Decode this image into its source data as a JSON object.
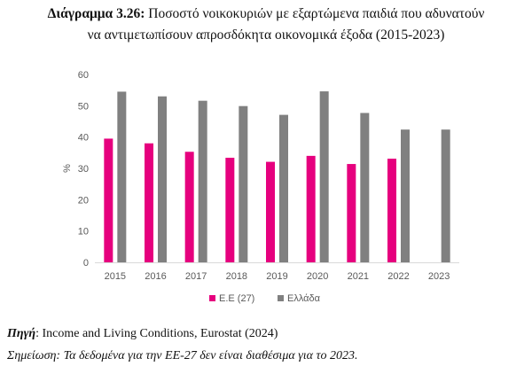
{
  "figure": {
    "title_prefix": "Διάγραμμα 3.26:",
    "title_line1_rest": "Ποσοστό νοικοκυριών με εξαρτώμενα παιδιά που αδυνατούν",
    "title_line2": "να αντιμετωπίσουν απροσδόκητα οικονομικά έξοδα (2015-2023)"
  },
  "footer": {
    "source_label": "Πηγή",
    "source_sep": ":",
    "source_text": " Income and Living Conditions, Eurostat (2024)",
    "note": "Σημείωση: Τα δεδομένα για την ΕΕ-27 δεν είναι διαθέσιμα για το 2023."
  },
  "chart_data": {
    "type": "bar",
    "categories": [
      "2015",
      "2016",
      "2017",
      "2018",
      "2019",
      "2020",
      "2021",
      "2022",
      "2023"
    ],
    "series": [
      {
        "name": "Ε.Ε (27)",
        "color": "#e6007e",
        "values": [
          39.5,
          38.0,
          35.3,
          33.4,
          32.1,
          34.0,
          31.4,
          33.1,
          null
        ]
      },
      {
        "name": "Ελλάδα",
        "color": "#808080",
        "values": [
          54.5,
          53.0,
          51.6,
          49.9,
          47.1,
          54.6,
          47.7,
          42.4,
          42.4
        ]
      }
    ],
    "ylabel": "%",
    "ylim": [
      0,
      60
    ],
    "yticks": [
      0,
      10,
      20,
      30,
      40,
      50,
      60
    ],
    "grid": false,
    "legend": "bottom"
  }
}
